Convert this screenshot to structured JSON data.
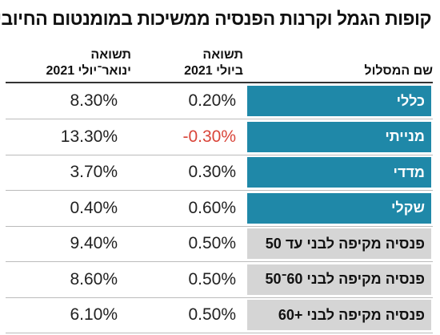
{
  "title": "קופות הגמל וקרנות הפנסיה ממשיכות במומנטום החיובי",
  "table": {
    "header": [
      [
        "שם המסלול"
      ],
      [
        "תשואה",
        "ביולי 2021"
      ],
      [
        "תשואה",
        "ינואר־יולי 2021"
      ]
    ],
    "rows": [
      [
        "כללי",
        "0.20%",
        "8.30%"
      ],
      [
        "מנייתי",
        "-0.30%",
        "13.30%"
      ],
      [
        "מדדי",
        "0.30%",
        "3.70%"
      ],
      [
        "שקלי",
        "0.60%",
        "0.40%"
      ],
      [
        "פנסיה מקיפה לבני עד 50",
        "0.50%",
        "9.40%"
      ],
      [
        "פנסיה מקיפה לבני 60־50",
        "0.50%",
        "8.60%"
      ],
      [
        "פנסיה מקיפה לבני +60",
        "0.50%",
        "6.10%"
      ]
    ]
  }
}
